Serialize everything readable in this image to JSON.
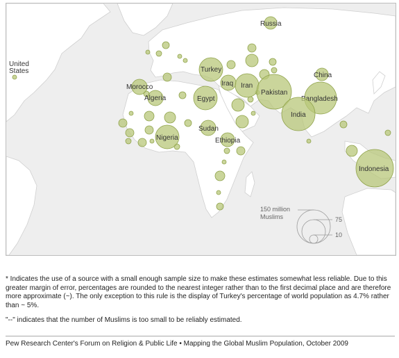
{
  "map": {
    "countries": [
      {
        "name": "Russia",
        "muslims_millions": 16
      },
      {
        "name": "United States",
        "muslims_millions": 2
      },
      {
        "name": "Turkey",
        "muslims_millions": 74
      },
      {
        "name": "Iraq",
        "muslims_millions": 30
      },
      {
        "name": "Iran",
        "muslims_millions": 74
      },
      {
        "name": "Pakistan",
        "muslims_millions": 174
      },
      {
        "name": "China",
        "muslims_millions": 22
      },
      {
        "name": "Morocco",
        "muslims_millions": 32
      },
      {
        "name": "Algeria",
        "muslims_millions": 34
      },
      {
        "name": "Egypt",
        "muslims_millions": 79
      },
      {
        "name": "Bangladesh",
        "muslims_millions": 145
      },
      {
        "name": "India",
        "muslims_millions": 161
      },
      {
        "name": "Sudan",
        "muslims_millions": 30
      },
      {
        "name": "Nigeria",
        "muslims_millions": 78
      },
      {
        "name": "Ethiopia",
        "muslims_millions": 28
      },
      {
        "name": "Indonesia",
        "muslims_millions": 203
      }
    ],
    "unlabeled_bubbles": 40,
    "legend": {
      "title_line1": "150 million",
      "title_line2": "Muslims",
      "value_mid": "75",
      "value_small": "10"
    },
    "colors": {
      "bubble": "#b8c77a",
      "land": "#ffffff",
      "ocean": "#eeeeee"
    }
  },
  "notes": {
    "asterisk": "* Indicates the use of a source with a small enough sample size to make these estimates somewhat less reliable. Due to this greater margin of error, percentages are rounded to the nearest integer rather than to the first decimal place and are therefore more approximate (~). The only exception to this rule is the display of Turkey's percentage of world population as 4.7% rather than ~ 5%.",
    "dash": "\"--\" indicates that the number of Muslims is too small to be reliably estimated."
  },
  "source": "Pew Research Center's Forum on Religion & Public Life • Mapping the Global Muslim Population, October 2009"
}
